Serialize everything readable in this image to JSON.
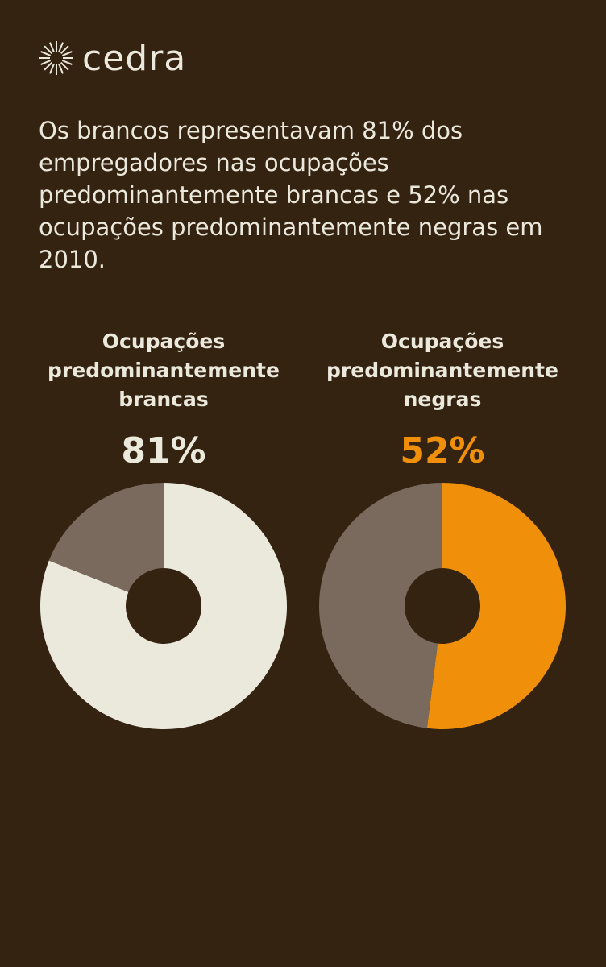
{
  "brand": "cedra",
  "description": "Os brancos representavam 81% dos empregadores nas ocupações predominantemente brancas e 52% nas ocupações predominantemente negras em 2010.",
  "chart_data": [
    {
      "type": "pie",
      "donut": true,
      "title": "Ocupações predominantemente brancas",
      "values": [
        81,
        19
      ],
      "value_labels": [
        "81%",
        null
      ],
      "colors": [
        "#ebe8dc",
        "#7a6a5e"
      ]
    },
    {
      "type": "pie",
      "donut": true,
      "title": "Ocupações predominantemente negras",
      "values": [
        52,
        48
      ],
      "value_labels": [
        "52%",
        null
      ],
      "colors": [
        "#f0900a",
        "#7a6a5e"
      ]
    }
  ]
}
